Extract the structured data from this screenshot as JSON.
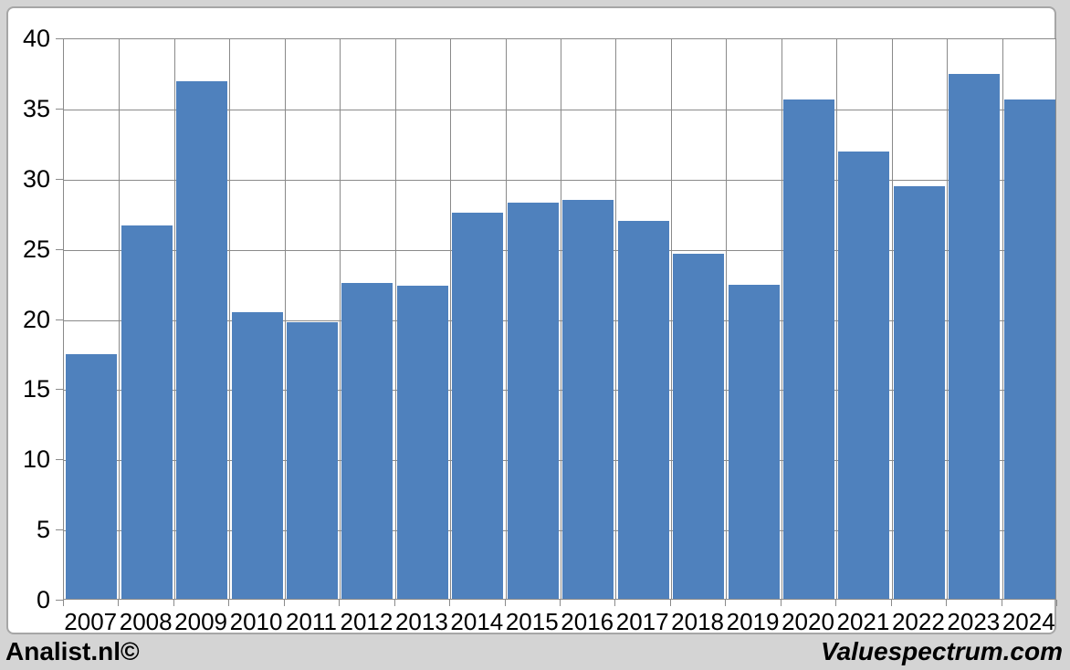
{
  "chart_data": {
    "type": "bar",
    "title": "",
    "xlabel": "",
    "ylabel": "",
    "categories": [
      "2007",
      "2008",
      "2009",
      "2010",
      "2011",
      "2012",
      "2013",
      "2014",
      "2015",
      "2016",
      "2017",
      "2018",
      "2019",
      "2020",
      "2021",
      "2022",
      "2023",
      "2024"
    ],
    "values": [
      17.4,
      26.6,
      36.9,
      20.4,
      19.7,
      22.5,
      22.3,
      27.5,
      28.2,
      28.4,
      26.9,
      24.6,
      22.4,
      35.6,
      31.9,
      29.4,
      37.4,
      35.6
    ],
    "ylim": [
      0,
      40
    ],
    "ytick_step": 5,
    "yticks": [
      0,
      5,
      10,
      15,
      20,
      25,
      30,
      35,
      40
    ],
    "grid": true,
    "legend": "none",
    "colors": {
      "bar": "#4f81bd",
      "gridline": "#8a8a8a",
      "axis": "#8a8a8a",
      "plot_background": "#ffffff",
      "panel_background": "#ffffff",
      "panel_border": "#a6a6a6",
      "page_background": "#d4d4d4",
      "text": "#000000"
    }
  },
  "footer": {
    "left_brand": "Analist.nl©",
    "right_brand": "Valuespectrum.com"
  }
}
